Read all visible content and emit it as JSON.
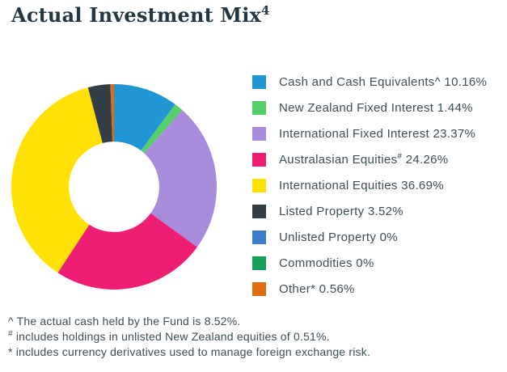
{
  "title": {
    "text": "Actual Investment Mix",
    "superscript": "4"
  },
  "chart_data": {
    "type": "pie",
    "subtype": "donut",
    "start_angle_deg": 0,
    "direction": "clockwise",
    "inner_radius_ratio": 0.44,
    "legend_position": "right",
    "segments": [
      {
        "label": "Cash and Cash Equivalents",
        "sup": "^",
        "sup_raised": false,
        "value_pct": 10.16,
        "display": "10.16%",
        "color": "#2196d3"
      },
      {
        "label": "New Zealand Fixed Interest",
        "sup": "",
        "sup_raised": false,
        "value_pct": 1.44,
        "display": "1.44%",
        "color": "#55ce6c"
      },
      {
        "label": "International Fixed Interest",
        "sup": "",
        "sup_raised": false,
        "value_pct": 23.37,
        "display": "23.37%",
        "color": "#a98bdc"
      },
      {
        "label": "Australasian Equities",
        "sup": "#",
        "sup_raised": true,
        "value_pct": 24.26,
        "display": "24.26%",
        "color": "#ee1e73"
      },
      {
        "label": "International Equities",
        "sup": "",
        "sup_raised": false,
        "value_pct": 36.69,
        "display": "36.69%",
        "color": "#ffe105"
      },
      {
        "label": "Listed Property",
        "sup": "",
        "sup_raised": false,
        "value_pct": 3.52,
        "display": "3.52%",
        "color": "#333e47"
      },
      {
        "label": "Unlisted Property",
        "sup": "",
        "sup_raised": false,
        "value_pct": 0,
        "display": "0%",
        "color": "#3d7cca"
      },
      {
        "label": "Commodities",
        "sup": "",
        "sup_raised": false,
        "value_pct": 0,
        "display": "0%",
        "color": "#16a05c"
      },
      {
        "label": "Other",
        "sup": "*",
        "sup_raised": false,
        "value_pct": 0.56,
        "display": "0.56%",
        "color": "#e06c12"
      }
    ]
  },
  "footnotes": [
    {
      "marker": "^",
      "marker_raised": false,
      "text": "The actual cash held by the Fund is 8.52%."
    },
    {
      "marker": "#",
      "marker_raised": true,
      "text": "includes holdings in unlisted New Zealand equities of 0.51%."
    },
    {
      "marker": "*",
      "marker_raised": false,
      "text": "includes currency derivatives used to manage foreign exchange risk."
    }
  ]
}
